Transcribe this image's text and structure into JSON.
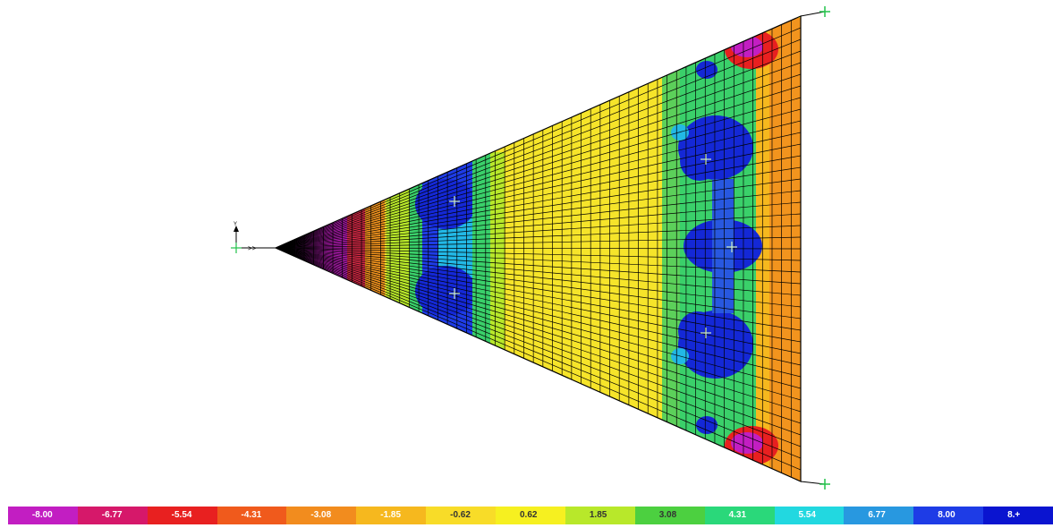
{
  "contour": {
    "legend": {
      "values": [
        "-8.00",
        "-6.77",
        "-5.54",
        "-4.31",
        "-3.08",
        "-1.85",
        "-0.62",
        "0.62",
        "1.85",
        "3.08",
        "4.31",
        "5.54",
        "6.77",
        "8.00",
        "8.+"
      ],
      "colors": [
        "#c21ec2",
        "#d6186a",
        "#e82020",
        "#f05a1c",
        "#f28c1e",
        "#f6b81e",
        "#f8dc28",
        "#f6f020",
        "#b8e82a",
        "#4cd040",
        "#2ad87a",
        "#22d8e0",
        "#2898e0",
        "#1e3ce6",
        "#0a14d0"
      ]
    },
    "colors": {
      "mesh_line": "#000000",
      "base_fill": "#f6e42a",
      "axis_marker": "#22c24a"
    },
    "axes": {
      "y_label": "Y",
      "arrow_label": ">>"
    }
  }
}
